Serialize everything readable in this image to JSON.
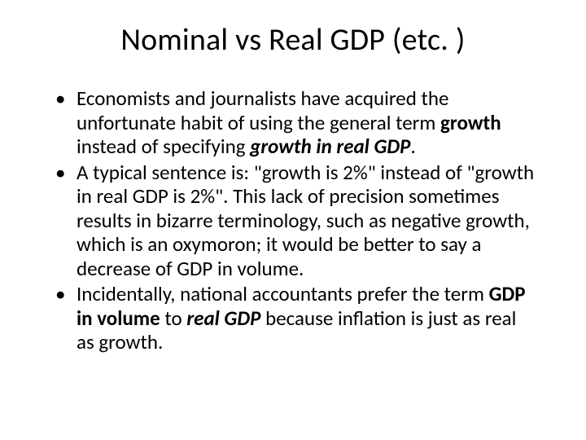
{
  "slide": {
    "background_color": "#ffffff",
    "text_color": "#000000",
    "title": "Nominal vs Real GDP (etc. )",
    "title_fontsize": 38,
    "body_fontsize": 25,
    "bullets": [
      {
        "runs": [
          {
            "t": " Economists and journalists have acquired the unfortunate habit of using the general term ",
            "style": "normal"
          },
          {
            "t": "growth",
            "style": "bold"
          },
          {
            "t": " instead of specifying ",
            "style": "normal"
          },
          {
            "t": "growth in real GDP",
            "style": "bold-italic"
          },
          {
            "t": ".",
            "style": "normal"
          }
        ]
      },
      {
        "runs": [
          {
            "t": " A typical sentence is: \"growth is 2%\" instead of \"growth in real GDP is 2%\". This lack of precision sometimes results in bizarre terminology, such as negative growth, which is an oxymoron; it would be better to say a decrease of GDP in volume.",
            "style": "normal"
          }
        ]
      },
      {
        "runs": [
          {
            "t": "Incidentally, national accountants prefer the term ",
            "style": "normal"
          },
          {
            "t": "GDP in volume",
            "style": "bold"
          },
          {
            "t": " to ",
            "style": "normal"
          },
          {
            "t": "real GDP",
            "style": "bold-italic"
          },
          {
            "t": " because inflation is just as real as growth.",
            "style": "normal"
          }
        ]
      }
    ]
  }
}
